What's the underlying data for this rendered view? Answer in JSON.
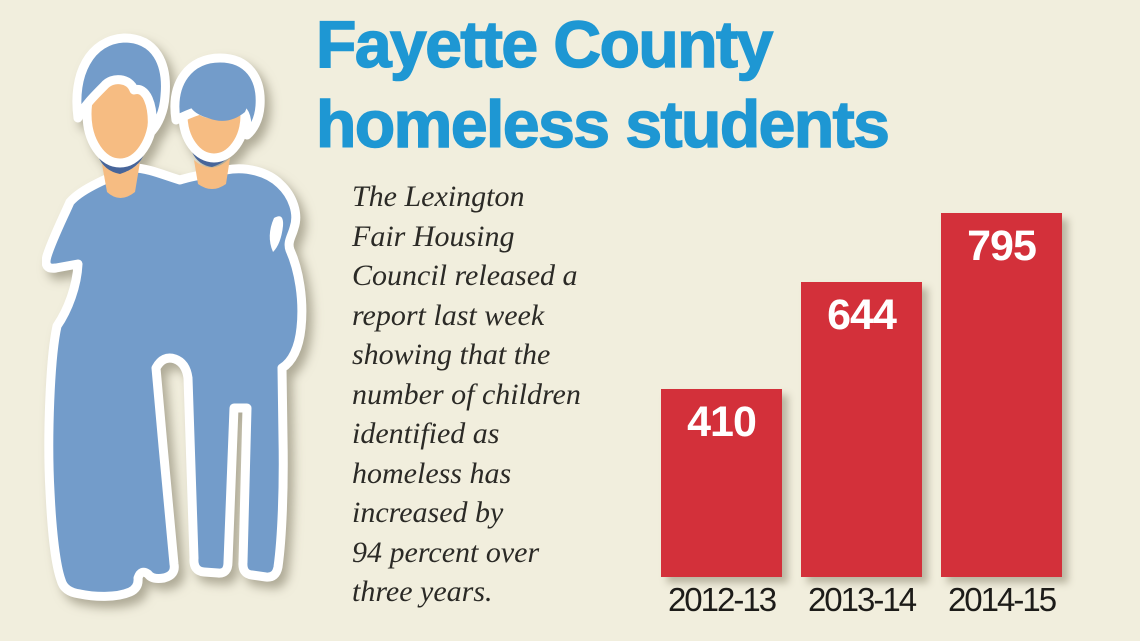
{
  "header": {
    "title": "Fayette County\nhomeless students"
  },
  "description": {
    "text": "The Lexington\nFair Housing\nCouncil released a\nreport last week\nshowing that the\nnumber of children\nidentified as\nhomeless has\nincreased by\n94 percent over\nthree years."
  },
  "illustration": {
    "label": "two-homeless-children-silhouette"
  },
  "chart_data": {
    "type": "bar",
    "categories": [
      "2012-13",
      "2013-14",
      "2014-15"
    ],
    "values": [
      410,
      644,
      795
    ],
    "title": "Fayette County homeless students",
    "xlabel": "",
    "ylabel": "",
    "ylim": [
      0,
      795
    ],
    "grid": false,
    "legend": "none",
    "value_labels": "inside-top-white-bold",
    "bar_color": "#d3303a"
  },
  "colors": {
    "background": "#f1eedd",
    "title": "#1e97d3",
    "text": "#2b2a26",
    "bar": "#d3303a",
    "value_label": "#ffffff",
    "axis_label": "#1d1c19",
    "figure_blue": "#739cca",
    "figure_shadow": "#47659a",
    "skin": "#f6bc82",
    "outline": "#ffffff"
  }
}
